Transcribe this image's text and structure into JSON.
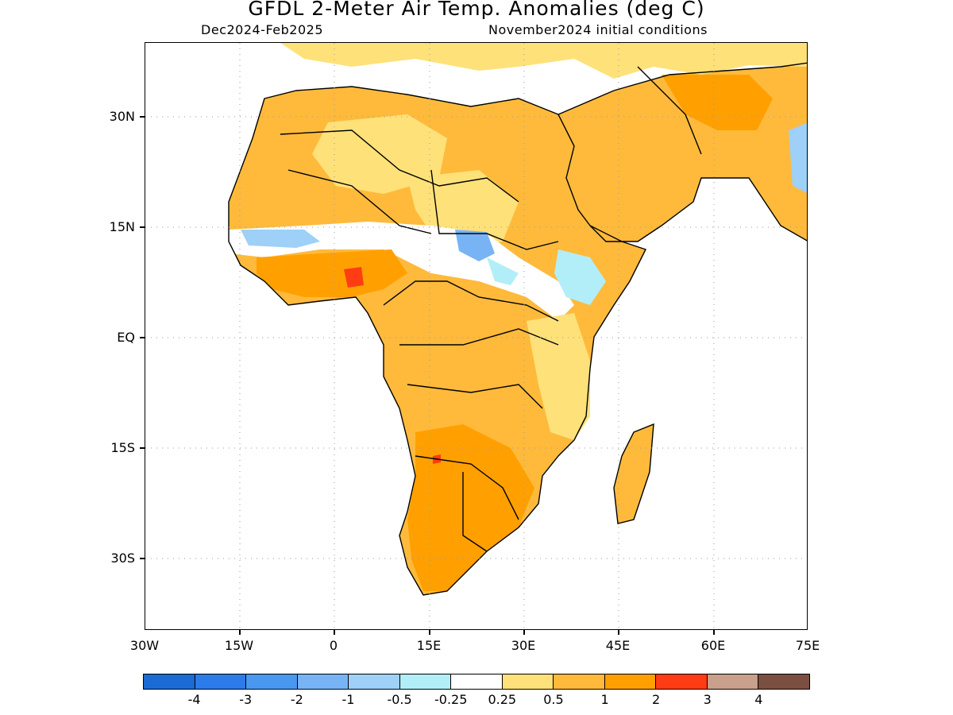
{
  "title": "GFDL 2-Meter Air Temp. Anomalies (deg C)",
  "subtitle_left": "Dec2024-Feb2025",
  "subtitle_right": "November2024 initial conditions",
  "lat_labels": [
    "30N",
    "15N",
    "EQ",
    "15S",
    "30S"
  ],
  "lon_labels": [
    "30W",
    "15W",
    "0",
    "15E",
    "30E",
    "45E",
    "60E",
    "75E"
  ],
  "colorbar": {
    "colors": [
      "#1c6ad4",
      "#2d7be8",
      "#4a97f0",
      "#78b4f5",
      "#9ed0f8",
      "#b2eef8",
      "#ffffff",
      "#ffe17a",
      "#ffba3c",
      "#ffa000",
      "#ff3c14",
      "#c8a08c",
      "#7b4f41"
    ],
    "labels": [
      "-4",
      "-3",
      "-2",
      "-1",
      "-0.5",
      "-0.25",
      "0.25",
      "0.5",
      "1",
      "2",
      "3",
      "4"
    ]
  }
}
